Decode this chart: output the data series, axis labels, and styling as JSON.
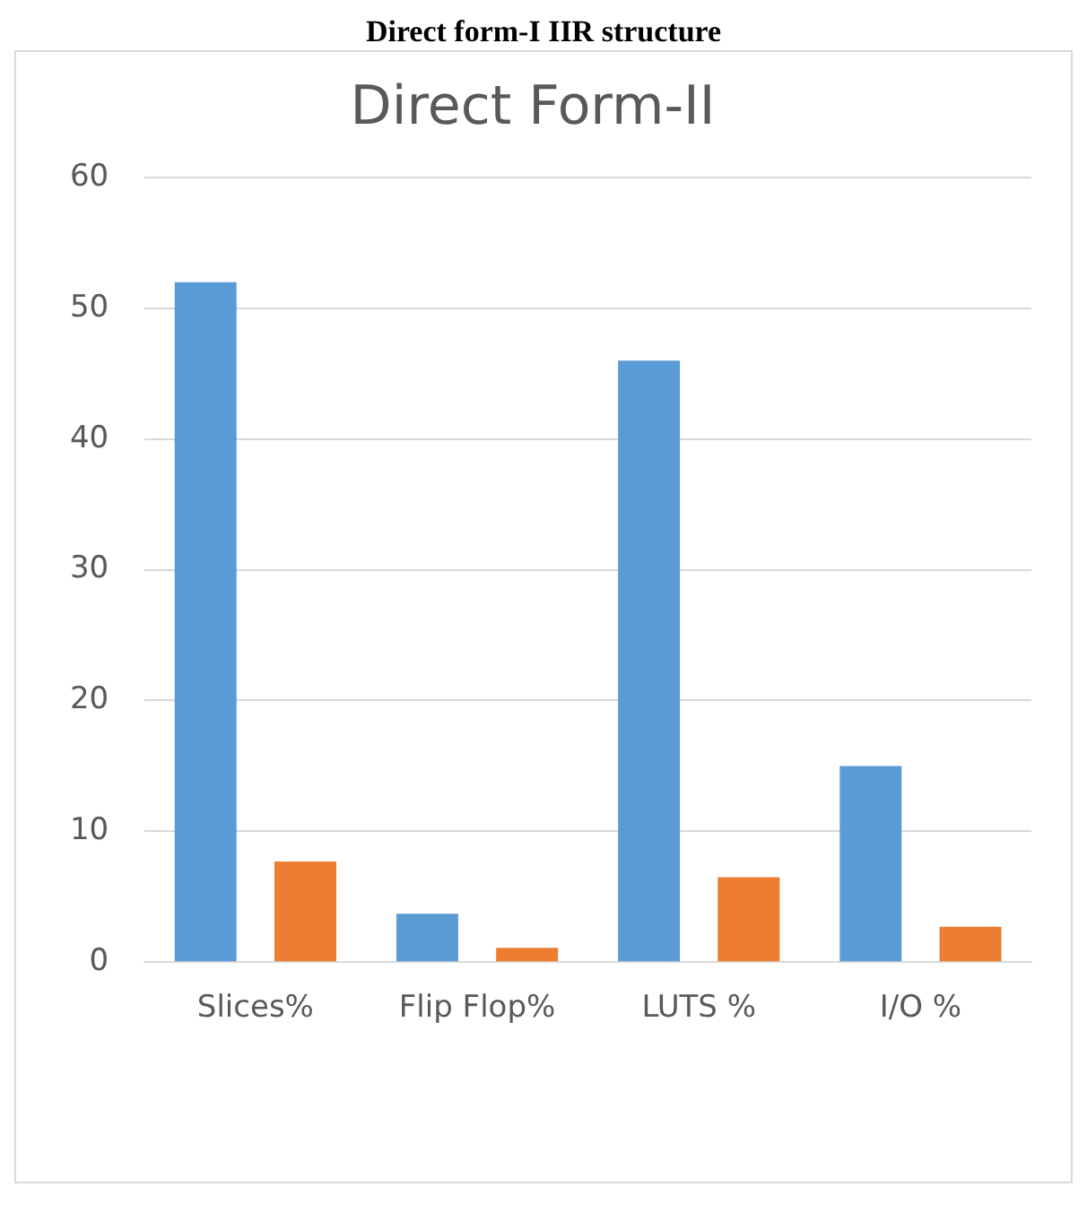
{
  "chart_data": {
    "type": "bar",
    "title": "Direct Form-II",
    "annotations": [
      "Direct form-I IIR structure"
    ],
    "categories": [
      "Slices%",
      "Flip Flop%",
      "LUTS %",
      "I/O %"
    ],
    "series": [
      {
        "color": "#5b9bd5",
        "values": [
          52,
          3.7,
          46,
          15
        ]
      },
      {
        "color": "#ed7d31",
        "values": [
          7.7,
          1.1,
          6.5,
          2.7
        ]
      }
    ],
    "ylim": [
      0,
      60
    ],
    "yticks": [
      0,
      10,
      20,
      30,
      40,
      50,
      60
    ],
    "grid": "y",
    "legend": false
  }
}
